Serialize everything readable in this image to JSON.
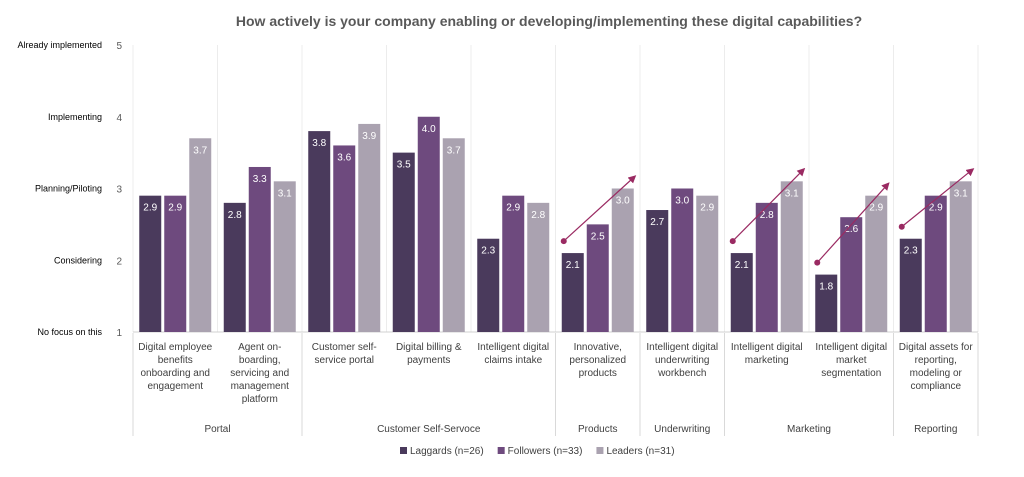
{
  "chart_data": {
    "type": "bar",
    "title": "How actively is your company enabling or developing/implementing these digital capabilities?",
    "ylim": [
      1,
      5
    ],
    "yticks": [
      1,
      2,
      3,
      4,
      5
    ],
    "ylevels": [
      {
        "value": 5,
        "label": "Already implemented"
      },
      {
        "value": 4,
        "label": "Implementing"
      },
      {
        "value": 3,
        "label": "Planning/Piloting"
      },
      {
        "value": 2,
        "label": "Considering"
      },
      {
        "value": 1,
        "label": "No focus on this"
      }
    ],
    "categories": [
      [
        "Digital employee",
        "benefits",
        "onboarding and",
        "engagement"
      ],
      [
        "Agent on-",
        "boarding,",
        "servicing and",
        "management",
        "platform"
      ],
      [
        "Customer self-",
        "service portal"
      ],
      [
        "Digital billing &",
        "payments"
      ],
      [
        "Intelligent digital",
        "claims intake"
      ],
      [
        "Innovative,",
        "personalized",
        "products"
      ],
      [
        "Intelligent digital",
        "underwriting",
        "workbench"
      ],
      [
        "Intelligent digital",
        "marketing"
      ],
      [
        "Intelligent digital",
        "market",
        "segmentation"
      ],
      [
        "Digital assets for",
        "reporting,",
        "modeling or",
        "compliance"
      ]
    ],
    "groups": [
      {
        "label": "Portal",
        "start": 0,
        "end": 1
      },
      {
        "label": "Customer Self-Servoce",
        "start": 2,
        "end": 4
      },
      {
        "label": "Products",
        "start": 5,
        "end": 5
      },
      {
        "label": "Underwriting",
        "start": 6,
        "end": 6
      },
      {
        "label": "Marketing",
        "start": 7,
        "end": 8
      },
      {
        "label": "Reporting",
        "start": 9,
        "end": 9
      }
    ],
    "series": [
      {
        "name": "Laggards (n=26)",
        "color": "#4a3a5c",
        "values": [
          2.9,
          2.8,
          3.8,
          3.5,
          2.3,
          2.1,
          2.7,
          2.1,
          1.8,
          2.3
        ]
      },
      {
        "name": "Followers (n=33)",
        "color": "#6e4a7e",
        "values": [
          2.9,
          3.3,
          3.6,
          4.0,
          2.9,
          2.5,
          3.0,
          2.8,
          2.6,
          2.9
        ]
      },
      {
        "name": "Leaders (n=31)",
        "color": "#aaa2b0",
        "values": [
          3.7,
          3.1,
          3.9,
          3.7,
          2.8,
          3.0,
          2.9,
          3.1,
          2.9,
          3.1
        ]
      }
    ],
    "trend_arrows": [
      5,
      7,
      8,
      9
    ],
    "arrow_color": "#9a2a62",
    "legend": "bottom",
    "grid": false
  }
}
